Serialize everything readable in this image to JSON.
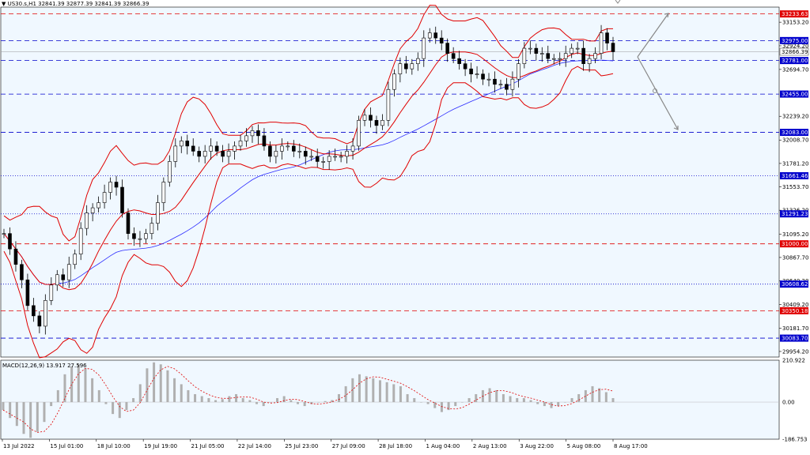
{
  "header": {
    "symbol_line": "US30.s,H1  32841.39 32877.39 32841.39 32866.39",
    "macd_line": "MACD(12,26,9) 13.917 27.596"
  },
  "colors": {
    "background": "#ffffff",
    "plot_bg": "#f0f8ff",
    "candle": "#000000",
    "bollinger": "#e00000",
    "ma": "#2a2aff",
    "level_blue": "#0000cc",
    "level_red": "#e00000",
    "arrow": "#888888"
  },
  "chart_data": [
    {
      "type": "candlestick",
      "instrument": "US30.s",
      "timeframe": "H1",
      "ohlc_last": {
        "open": 32841.39,
        "high": 32877.39,
        "low": 32841.39,
        "close": 32866.39
      },
      "current_price": 32866.39,
      "y_ticks": [
        "33153.20",
        "32924.20",
        "32694.70",
        "32239.20",
        "32008.70",
        "31781.20",
        "31553.70",
        "31326.20",
        "31095.20",
        "30867.70",
        "30640.20",
        "30409.20",
        "30181.70",
        "29954.20"
      ],
      "x_ticks": [
        "13 Jul 2022",
        "15 Jul 01:00",
        "18 Jul 10:00",
        "19 Jul 19:00",
        "21 Jul 05:00",
        "22 Jul 14:00",
        "25 Jul 23:00",
        "27 Jul 09:00",
        "28 Jul 18:00",
        "1 Aug 04:00",
        "2 Aug 13:00",
        "3 Aug 22:00",
        "5 Aug 08:00",
        "8 Aug 17:00"
      ],
      "levels": [
        {
          "value": "33233.63",
          "style": "dash",
          "color": "red"
        },
        {
          "value": "32975.00",
          "style": "dash",
          "color": "blue"
        },
        {
          "value": "32781.00",
          "style": "dash",
          "color": "blue"
        },
        {
          "value": "32455.00",
          "style": "dash",
          "color": "blue"
        },
        {
          "value": "32083.00",
          "style": "dash",
          "color": "blue"
        },
        {
          "value": "31661.46",
          "style": "dot",
          "color": "blue"
        },
        {
          "value": "31291.23",
          "style": "dot",
          "color": "blue"
        },
        {
          "value": "31000.00",
          "style": "dash",
          "color": "red"
        },
        {
          "value": "30608.62",
          "style": "dot",
          "color": "blue"
        },
        {
          "value": "30350.18",
          "style": "dash",
          "color": "red"
        },
        {
          "value": "30083.70",
          "style": "dash",
          "color": "blue"
        }
      ],
      "closes_approx": [
        31100,
        30950,
        30800,
        30650,
        30400,
        30300,
        30200,
        30450,
        30600,
        30700,
        30650,
        30800,
        30900,
        31150,
        31300,
        31350,
        31400,
        31500,
        31600,
        31550,
        31300,
        31100,
        31050,
        31050,
        31100,
        31200,
        31400,
        31600,
        31800,
        31950,
        32000,
        31950,
        31900,
        31850,
        31900,
        31950,
        31900,
        31850,
        31900,
        31950,
        32000,
        32050,
        32100,
        32050,
        31950,
        31850,
        31900,
        31950,
        31950,
        31900,
        31900,
        31850,
        31850,
        31800,
        31800,
        31850,
        31850,
        31850,
        31900,
        31950,
        32200,
        32250,
        32200,
        32150,
        32200,
        32500,
        32650,
        32750,
        32700,
        32750,
        32800,
        33000,
        33050,
        33000,
        32950,
        32850,
        32800,
        32750,
        32700,
        32650,
        32650,
        32600,
        32600,
        32550,
        32550,
        32500,
        32600,
        32750,
        32900,
        32900,
        32850,
        32850,
        32800,
        32800,
        32800,
        32850,
        32900,
        32900,
        32750,
        32800,
        32850,
        33050,
        32950,
        32866.39
      ]
    },
    {
      "type": "bar",
      "indicator": "MACD(12,26,9)",
      "macd": 13.917,
      "signal": 27.596,
      "y_ticks": [
        "210.922",
        "0.00",
        "-186.753"
      ],
      "histogram_approx": [
        -40,
        -80,
        -120,
        -160,
        -180,
        -150,
        -100,
        -20,
        60,
        140,
        180,
        190,
        170,
        120,
        60,
        -10,
        -60,
        -80,
        -40,
        20,
        90,
        170,
        200,
        190,
        160,
        120,
        90,
        60,
        40,
        30,
        20,
        10,
        15,
        30,
        40,
        20,
        10,
        -10,
        -20,
        0,
        20,
        30,
        10,
        -10,
        -20,
        -10,
        0,
        5,
        10,
        40,
        80,
        120,
        140,
        130,
        120,
        110,
        100,
        90,
        80,
        40,
        20,
        0,
        -10,
        -30,
        -50,
        -40,
        -20,
        0,
        20,
        40,
        60,
        70,
        60,
        40,
        30,
        20,
        20,
        10,
        -10,
        -20,
        -30,
        -20,
        0,
        20,
        40,
        60,
        80,
        70,
        50,
        20
      ]
    }
  ]
}
